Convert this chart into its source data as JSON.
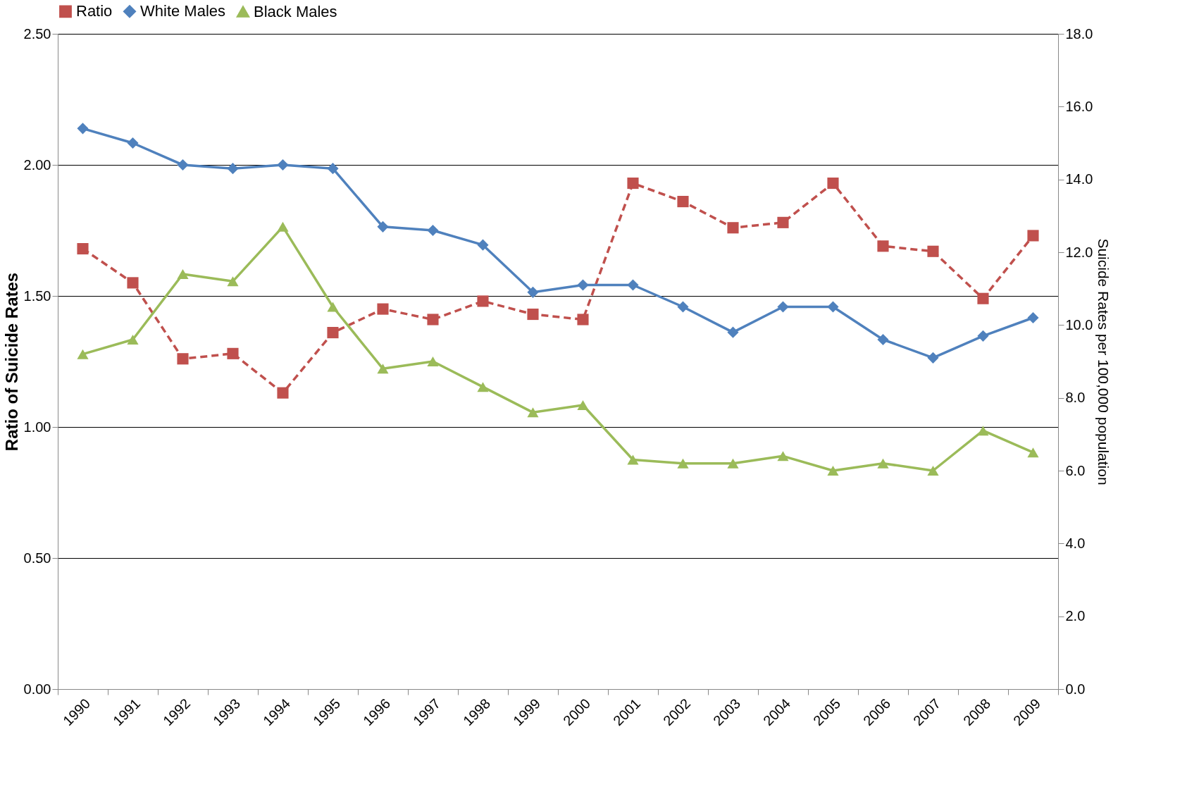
{
  "chart_data": {
    "type": "line",
    "categories": [
      "1990",
      "1991",
      "1992",
      "1993",
      "1994",
      "1995",
      "1996",
      "1997",
      "1998",
      "1999",
      "2000",
      "2001",
      "2002",
      "2003",
      "2004",
      "2005",
      "2006",
      "2007",
      "2008",
      "2009"
    ],
    "series": [
      {
        "name": "Ratio",
        "color": "#c0504d",
        "marker": "square",
        "line_style": "dashed",
        "axis": "y",
        "values": [
          1.68,
          1.55,
          1.26,
          1.28,
          1.13,
          1.36,
          1.45,
          1.41,
          1.48,
          1.43,
          1.41,
          1.93,
          1.86,
          1.76,
          1.78,
          1.93,
          1.69,
          1.67,
          1.49,
          1.73
        ]
      },
      {
        "name": "White Males",
        "color": "#4f81bd",
        "marker": "diamond",
        "line_style": "solid",
        "axis": "y2",
        "values": [
          15.4,
          15.0,
          14.4,
          14.3,
          14.4,
          14.3,
          12.7,
          12.6,
          12.2,
          10.9,
          11.1,
          11.1,
          10.5,
          9.8,
          10.5,
          10.5,
          9.6,
          9.1,
          9.7,
          10.2
        ]
      },
      {
        "name": "Black Males",
        "color": "#9bbb59",
        "marker": "triangle",
        "line_style": "solid",
        "axis": "y2",
        "values": [
          9.2,
          9.6,
          11.4,
          11.2,
          12.7,
          10.5,
          8.8,
          9.0,
          8.3,
          7.6,
          7.8,
          6.3,
          6.2,
          6.2,
          6.4,
          6.0,
          6.2,
          6.0,
          7.1,
          6.5
        ]
      }
    ],
    "ylabel": "Ratio of Suicide Rates",
    "y2label": "Suicide Rates per 100,000 population",
    "ylim": [
      0,
      2.5
    ],
    "yticks": [
      {
        "value": 0,
        "label": "0.00"
      },
      {
        "value": 0.5,
        "label": "0.50"
      },
      {
        "value": 1,
        "label": "1.00"
      },
      {
        "value": 1.5,
        "label": "1.50"
      },
      {
        "value": 2,
        "label": "2.00"
      },
      {
        "value": 2.5,
        "label": "2.50"
      }
    ],
    "y2lim": [
      0,
      18
    ],
    "y2ticks": [
      {
        "value": 0,
        "label": "0.0"
      },
      {
        "value": 2,
        "label": "2.0"
      },
      {
        "value": 4,
        "label": "4.0"
      },
      {
        "value": 6,
        "label": "6.0"
      },
      {
        "value": 8,
        "label": "8.0"
      },
      {
        "value": 10,
        "label": "10.0"
      },
      {
        "value": 12,
        "label": "12.0"
      },
      {
        "value": 14,
        "label": "14.0"
      },
      {
        "value": 16,
        "label": "16.0"
      },
      {
        "value": 18,
        "label": "18.0"
      }
    ],
    "grid": "y",
    "legend": "top"
  }
}
